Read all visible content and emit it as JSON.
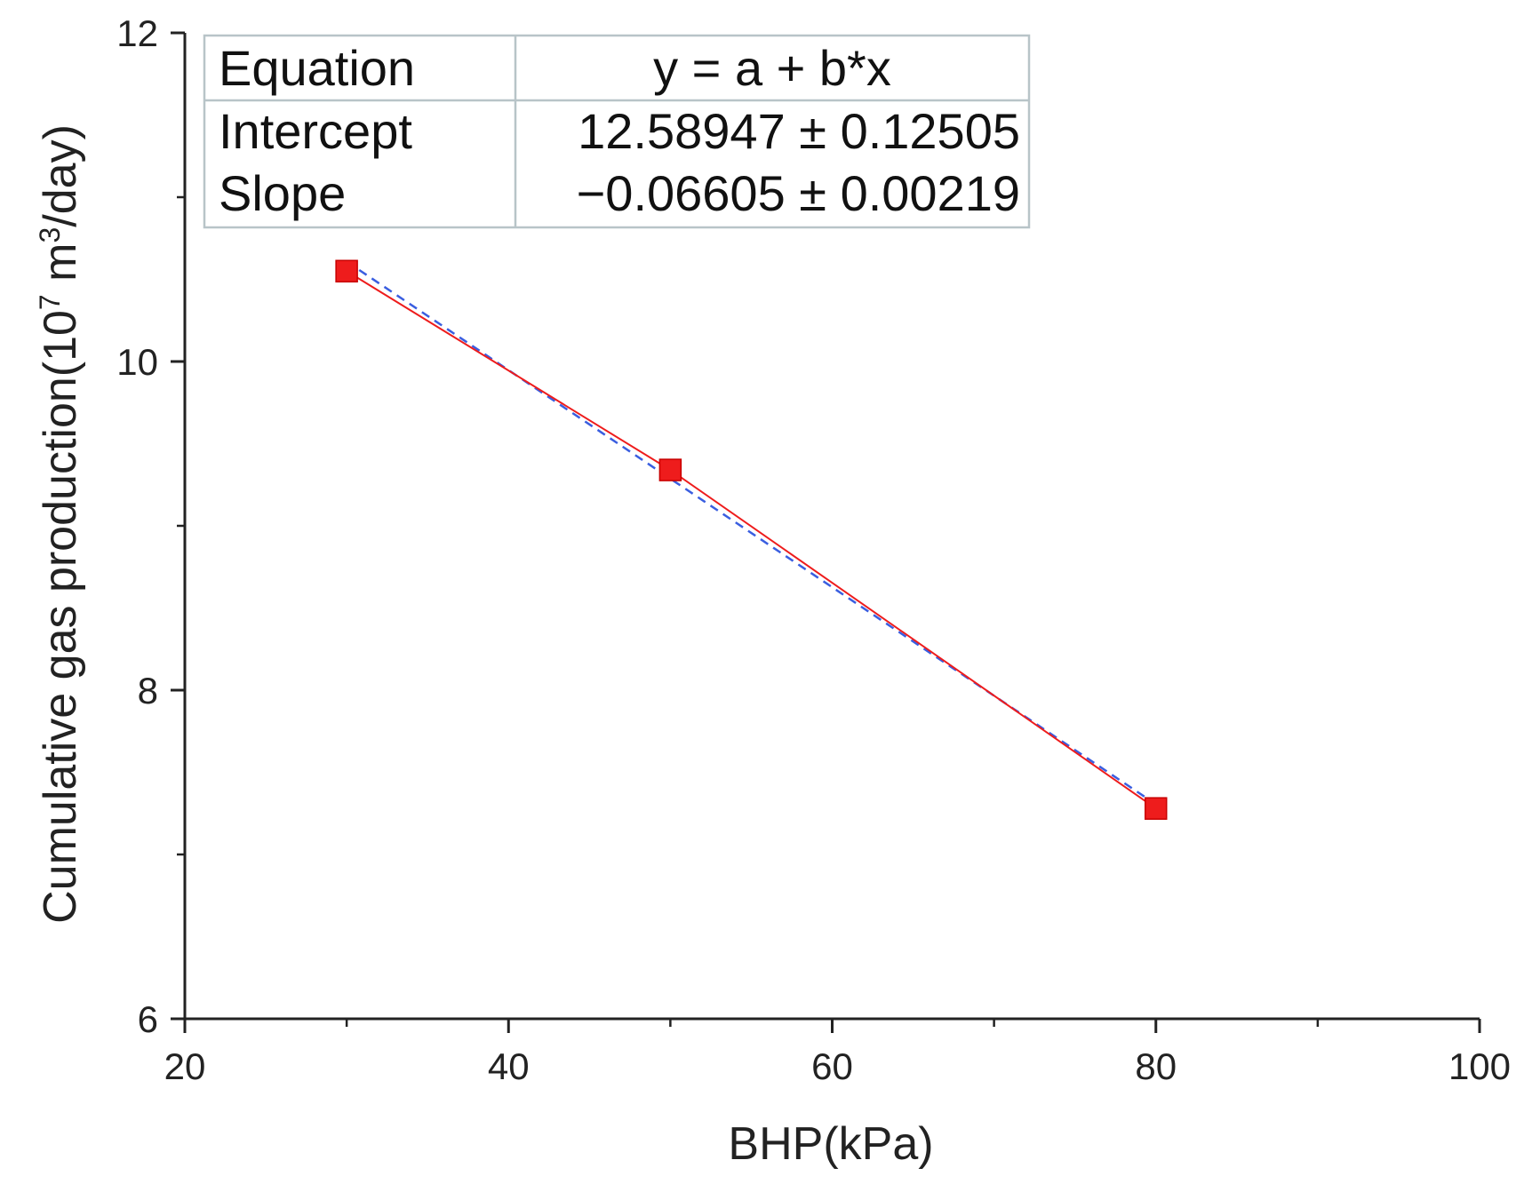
{
  "chart_data": {
    "type": "scatter",
    "xlabel": "BHP(kPa)",
    "ylabel_main": "Cumulative gas production(10",
    "ylabel_sup1": "7",
    "ylabel_mid": " m",
    "ylabel_sup2": "3",
    "ylabel_end": "/day)",
    "xlim": [
      20,
      100
    ],
    "ylim": [
      6,
      12
    ],
    "x_ticks": [
      20,
      40,
      60,
      80,
      100
    ],
    "x_minor_ticks": [
      30,
      50,
      70,
      90
    ],
    "y_ticks": [
      6,
      8,
      10,
      12
    ],
    "y_minor_ticks": [
      7,
      9,
      11
    ],
    "series": [
      {
        "marker": "square",
        "color": "#ee1c1c",
        "points": [
          {
            "x": 30,
            "y": 10.55
          },
          {
            "x": 50,
            "y": 9.34
          },
          {
            "x": 80,
            "y": 7.28
          }
        ]
      }
    ],
    "connecting_line": {
      "color": "#ee1c1c",
      "style": "solid"
    },
    "fit_line": {
      "color": "#3a5ee0",
      "style": "dashed",
      "intercept": 12.58947,
      "slope": -0.06605,
      "x_range": [
        30,
        80
      ]
    },
    "fit_table": [
      [
        "Equation",
        "y = a + b*x"
      ],
      [
        "Intercept",
        "12.58947 ± 0.12505"
      ],
      [
        "Slope",
        "−0.06605 ± 0.00219"
      ]
    ],
    "grid": false,
    "legend": "none"
  }
}
